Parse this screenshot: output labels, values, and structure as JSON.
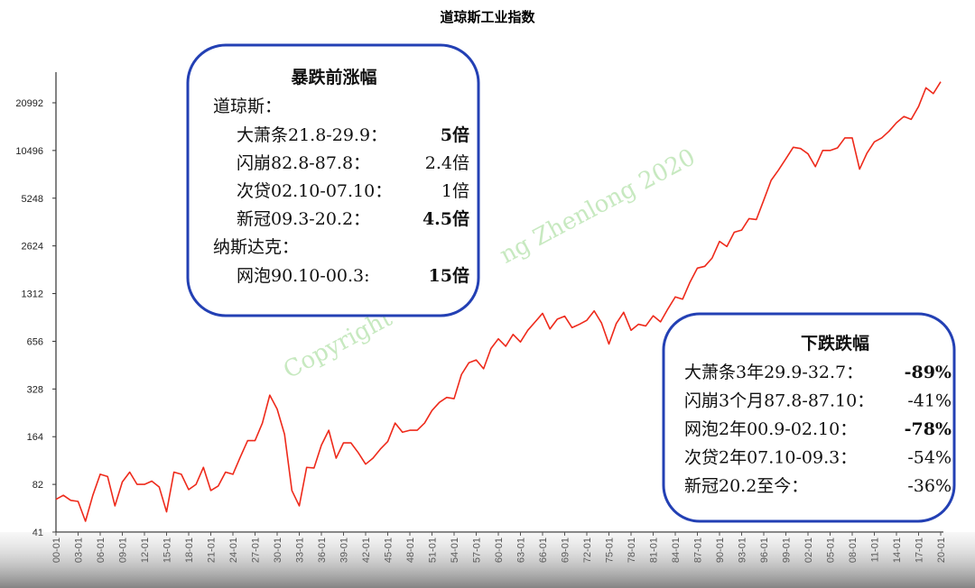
{
  "chart_data": {
    "type": "line",
    "title": "道琼斯工业指数",
    "log_scale": true,
    "grid": false,
    "color": "#ee2a1b",
    "ylim": [
      41,
      32768
    ],
    "yticks": [
      41,
      82,
      164,
      328,
      656,
      1312,
      2624,
      5248,
      10496,
      20992
    ],
    "categories": [
      "00-01",
      null,
      null,
      "03-01",
      null,
      null,
      "06-01",
      null,
      null,
      "09-01",
      null,
      null,
      "12-01",
      null,
      null,
      "15-01",
      null,
      null,
      "18-01",
      null,
      null,
      "21-01",
      null,
      null,
      "24-01",
      null,
      null,
      "27-01",
      null,
      null,
      "30-01",
      null,
      null,
      "33-01",
      null,
      null,
      "36-01",
      null,
      null,
      "39-01",
      null,
      null,
      "42-01",
      null,
      null,
      "45-01",
      null,
      null,
      "48-01",
      null,
      null,
      "51-01",
      null,
      null,
      "54-01",
      null,
      null,
      "57-01",
      null,
      null,
      "60-01",
      null,
      null,
      "63-01",
      null,
      null,
      "66-01",
      null,
      null,
      "69-01",
      null,
      null,
      "72-01",
      null,
      null,
      "75-01",
      null,
      null,
      "78-01",
      null,
      null,
      "81-01",
      null,
      null,
      "84-01",
      null,
      null,
      "87-01",
      null,
      null,
      "90-01",
      null,
      null,
      "93-01",
      null,
      null,
      "96-01",
      null,
      null,
      "99-01",
      null,
      null,
      "02-01",
      null,
      null,
      "05-01",
      null,
      null,
      "08-01",
      null,
      null,
      "11-01",
      null,
      null,
      "14-01",
      null,
      null,
      "17-01",
      null,
      null,
      "20-01"
    ],
    "values": [
      66,
      70,
      65,
      64,
      48,
      70,
      95,
      92,
      60,
      85,
      98,
      82,
      82,
      86,
      79,
      55,
      98,
      95,
      76,
      82,
      105,
      75,
      80,
      98,
      95,
      122,
      155,
      155,
      200,
      300,
      245,
      170,
      75,
      60,
      105,
      104,
      145,
      180,
      120,
      150,
      150,
      130,
      110,
      120,
      137,
      153,
      200,
      175,
      180,
      180,
      200,
      240,
      270,
      290,
      285,
      405,
      480,
      500,
      440,
      590,
      680,
      610,
      725,
      650,
      770,
      870,
      985,
      785,
      905,
      945,
      800,
      840,
      890,
      1020,
      855,
      630,
      850,
      1000,
      770,
      840,
      820,
      950,
      870,
      1050,
      1250,
      1210,
      1550,
      1900,
      1950,
      2200,
      2800,
      2600,
      3200,
      3300,
      3900,
      3850,
      5100,
      6800,
      7900,
      9300,
      11000,
      10800,
      10000,
      8300,
      10500,
      10500,
      10900,
      12600,
      12600,
      8000,
      10100,
      11900,
      12600,
      13900,
      15700,
      17200,
      16500,
      19900,
      26100,
      24000,
      28500
    ],
    "watermark": [
      "Copyright",
      "ng Zhenlong 2020"
    ],
    "left_box": {
      "title": "暴跌前涨幅",
      "groups": [
        {
          "name": "道琼斯：",
          "items": [
            {
              "label": "大萧条21.8-29.9：",
              "value": "5倍",
              "highlight": true
            },
            {
              "label": "闪崩82.8-87.8：",
              "value": "2.4倍",
              "highlight": false
            },
            {
              "label": "次贷02.10-07.10：",
              "value": "1倍",
              "highlight": false
            },
            {
              "label": "新冠09.3-20.2：",
              "value": "4.5倍",
              "highlight": true
            }
          ]
        },
        {
          "name": "纳斯达克：",
          "items": [
            {
              "label": "网泡90.10-00.3:",
              "value": "15倍",
              "highlight": true
            }
          ]
        }
      ]
    },
    "right_box": {
      "title": "下跌跌幅",
      "items": [
        {
          "label": "大萧条3年29.9-32.7：",
          "value": "-89%",
          "highlight": true
        },
        {
          "label": "闪崩3个月87.8-87.10：",
          "value": "-41%",
          "highlight": false
        },
        {
          "label": "网泡2年00.9-02.10：",
          "value": "-78%",
          "highlight": true
        },
        {
          "label": "次贷2年07.10-09.3：",
          "value": "-54%",
          "highlight": false
        },
        {
          "label": "新冠20.2至今：",
          "value": "-36%",
          "highlight": false
        }
      ]
    }
  }
}
